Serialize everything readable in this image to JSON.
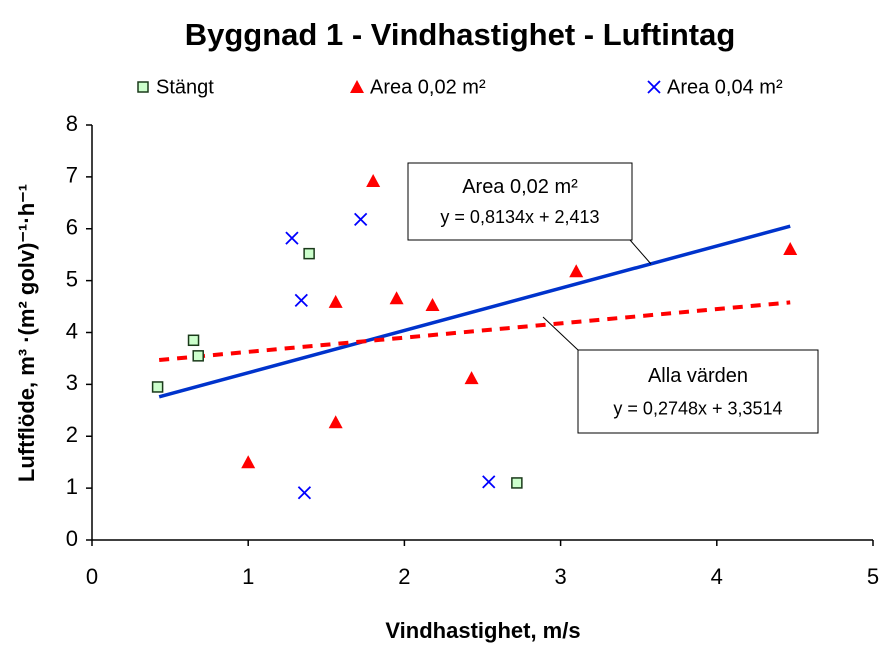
{
  "chart_data": {
    "type": "scatter",
    "title": "Byggnad 1 - Vindhastighet - Luftintag",
    "x_label": "Vindhastighet, m/s",
    "y_label": "Luftflöde, m³ ·(m² golv)⁻¹·h⁻¹",
    "xlim": [
      0,
      5
    ],
    "xticks": [
      0,
      1,
      2,
      3,
      4,
      5
    ],
    "ylim": [
      0,
      8
    ],
    "yticks": [
      0,
      1,
      2,
      3,
      4,
      5,
      6,
      7,
      8
    ],
    "grid": false,
    "legend": "top",
    "series": [
      {
        "name": "Stängt",
        "color": "#ccffcc",
        "marker": "square",
        "x": [
          0.42,
          0.65,
          0.68,
          1.39,
          2.72
        ],
        "values": [
          2.95,
          3.85,
          3.55,
          5.52,
          1.1
        ]
      },
      {
        "name": "Area 0,02 m²",
        "color": "#ff0000",
        "marker": "triangle",
        "x": [
          1.0,
          1.56,
          1.56,
          1.8,
          1.95,
          2.18,
          2.43,
          3.1,
          4.47
        ],
        "values": [
          1.5,
          2.27,
          4.59,
          6.92,
          4.66,
          4.53,
          3.12,
          5.18,
          5.61
        ]
      },
      {
        "name": "Area 0,04 m²",
        "color": "#0000ff",
        "marker": "cross",
        "x": [
          1.28,
          1.34,
          1.36,
          1.72,
          2.54
        ],
        "values": [
          5.82,
          4.62,
          0.91,
          6.18,
          1.12
        ]
      }
    ],
    "trendlines": [
      {
        "label": "Area 0,02 m²",
        "equation": "y = 0,8134x + 2,413",
        "color": "#0033cc",
        "dashed": false,
        "x": [
          0.43,
          4.47
        ],
        "values": [
          2.76,
          6.05
        ]
      },
      {
        "label": "Alla värden",
        "equation": "y = 0,2748x + 3,3514",
        "color": "#ff0000",
        "dashed": true,
        "x": [
          0.43,
          4.47
        ],
        "values": [
          3.47,
          4.58
        ]
      }
    ]
  }
}
